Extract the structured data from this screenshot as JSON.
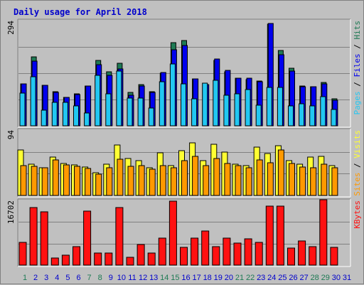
{
  "title": "Daily usage for April 2018",
  "colors": {
    "background": "#c0c0c0",
    "plot_bg": "#c0c0c0",
    "title": "#0000cc",
    "hits": "#1e7a54",
    "files": "#0000ee",
    "pages": "#22c7f2",
    "visits": "#ffff33",
    "sites": "#ff9900",
    "kbytes": "#ff1111",
    "weekend_day": "#1e7a54",
    "day": "#0000cc"
  },
  "chart_data": [
    {
      "type": "bar",
      "name": "hits-files-pages",
      "ymax_label": "294",
      "ylim": [
        0,
        294
      ],
      "legend": [
        {
          "key": "pages",
          "text": "Pages"
        },
        {
          "key": "sep",
          "text": " / "
        },
        {
          "key": "files",
          "text": "Files"
        },
        {
          "key": "sep",
          "text": " / "
        },
        {
          "key": "hits",
          "text": "Hits"
        }
      ],
      "series": [
        {
          "name": "Hits",
          "values": [
            118,
            193,
            113,
            96,
            80,
            90,
            111,
            182,
            150,
            175,
            94,
            115,
            95,
            147,
            232,
            239,
            132,
            115,
            182,
            150,
            133,
            130,
            126,
            285,
            210,
            160,
            112,
            110,
            122,
            75,
            0
          ]
        },
        {
          "name": "Files",
          "values": [
            118,
            180,
            113,
            93,
            79,
            87,
            111,
            170,
            141,
            158,
            86,
            111,
            94,
            148,
            213,
            225,
            131,
            115,
            186,
            154,
            133,
            134,
            123,
            287,
            198,
            152,
            109,
            109,
            118,
            72,
            0
          ]
        },
        {
          "name": "Pages",
          "values": [
            92,
            138,
            44,
            66,
            66,
            55,
            35,
            141,
            90,
            153,
            78,
            77,
            50,
            124,
            172,
            117,
            75,
            120,
            127,
            86,
            90,
            102,
            57,
            108,
            108,
            56,
            61,
            56,
            82,
            46,
            0
          ]
        }
      ]
    },
    {
      "type": "bar",
      "name": "visits-sites",
      "ymax_label": "94",
      "ylim": [
        0,
        94
      ],
      "legend": [
        {
          "key": "sites",
          "text": "Sites"
        },
        {
          "key": "sep",
          "text": " / "
        },
        {
          "key": "visits",
          "text": "Visits"
        }
      ],
      "series": [
        {
          "name": "Visits",
          "values": [
            65,
            45,
            40,
            55,
            46,
            44,
            41,
            33,
            45,
            73,
            53,
            50,
            40,
            61,
            43,
            64,
            76,
            50,
            74,
            62,
            45,
            43,
            69,
            60,
            72,
            50,
            45,
            55,
            56,
            43,
            0
          ]
        },
        {
          "name": "Sites",
          "values": [
            43,
            42,
            40,
            51,
            44,
            42,
            39,
            31,
            40,
            52,
            42,
            43,
            38,
            43,
            40,
            50,
            56,
            43,
            53,
            46,
            43,
            40,
            51,
            47,
            65,
            46,
            41,
            40,
            45,
            40,
            0
          ]
        }
      ]
    },
    {
      "type": "bar",
      "name": "kbytes",
      "ymax_label": "16702",
      "ylim": [
        0,
        16702
      ],
      "legend": [
        {
          "key": "kbytes",
          "text": "KBytes"
        }
      ],
      "series": [
        {
          "name": "KBytes",
          "values": [
            5900,
            14800,
            13800,
            1800,
            2500,
            4700,
            13900,
            3200,
            3100,
            14900,
            2000,
            5400,
            3200,
            7000,
            16500,
            4500,
            7000,
            8800,
            4700,
            7000,
            5600,
            6800,
            5800,
            15200,
            15300,
            4400,
            6200,
            4700,
            16800,
            4500,
            0
          ]
        }
      ]
    }
  ],
  "days": [
    "1",
    "2",
    "3",
    "4",
    "5",
    "6",
    "7",
    "8",
    "9",
    "10",
    "11",
    "12",
    "13",
    "14",
    "15",
    "16",
    "17",
    "18",
    "19",
    "20",
    "21",
    "22",
    "23",
    "24",
    "25",
    "26",
    "27",
    "28",
    "29",
    "30",
    "31"
  ],
  "weekend_days": [
    1,
    7,
    8,
    14,
    15,
    21,
    22,
    28,
    29
  ]
}
